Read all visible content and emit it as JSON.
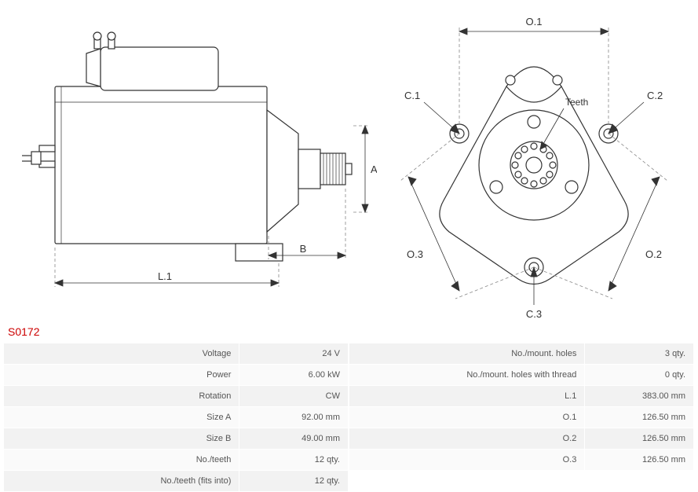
{
  "part_number": "S0172",
  "diagram_labels": {
    "L1": "L.1",
    "A": "A",
    "B": "B",
    "O1": "O.1",
    "O2": "O.2",
    "O3": "O.3",
    "C1": "C.1",
    "C2": "C.2",
    "C3": "C.3",
    "Teeth": "Teeth"
  },
  "specs_left": [
    {
      "label": "Voltage",
      "value": "24 V"
    },
    {
      "label": "Power",
      "value": "6.00 kW"
    },
    {
      "label": "Rotation",
      "value": "CW"
    },
    {
      "label": "Size A",
      "value": "92.00 mm"
    },
    {
      "label": "Size B",
      "value": "49.00 mm"
    },
    {
      "label": "No./teeth",
      "value": "12 qty."
    },
    {
      "label": "No./teeth (fits into)",
      "value": "12 qty."
    }
  ],
  "specs_right": [
    {
      "label": "No./mount. holes",
      "value": "3 qty."
    },
    {
      "label": "No./mount. holes with thread",
      "value": "0 qty."
    },
    {
      "label": "L.1",
      "value": "383.00 mm"
    },
    {
      "label": "O.1",
      "value": "126.50 mm"
    },
    {
      "label": "O.2",
      "value": "126.50 mm"
    },
    {
      "label": "O.3",
      "value": "126.50 mm"
    },
    {
      "label": "",
      "value": ""
    }
  ],
  "styling": {
    "part_number_color": "#cc0000",
    "table_row_bg": "#f2f2f2",
    "table_row_alt_bg": "#fafafa",
    "table_border": "#ffffff",
    "line_color": "#333333",
    "dash_color": "#888888",
    "label_font_size": 13
  }
}
